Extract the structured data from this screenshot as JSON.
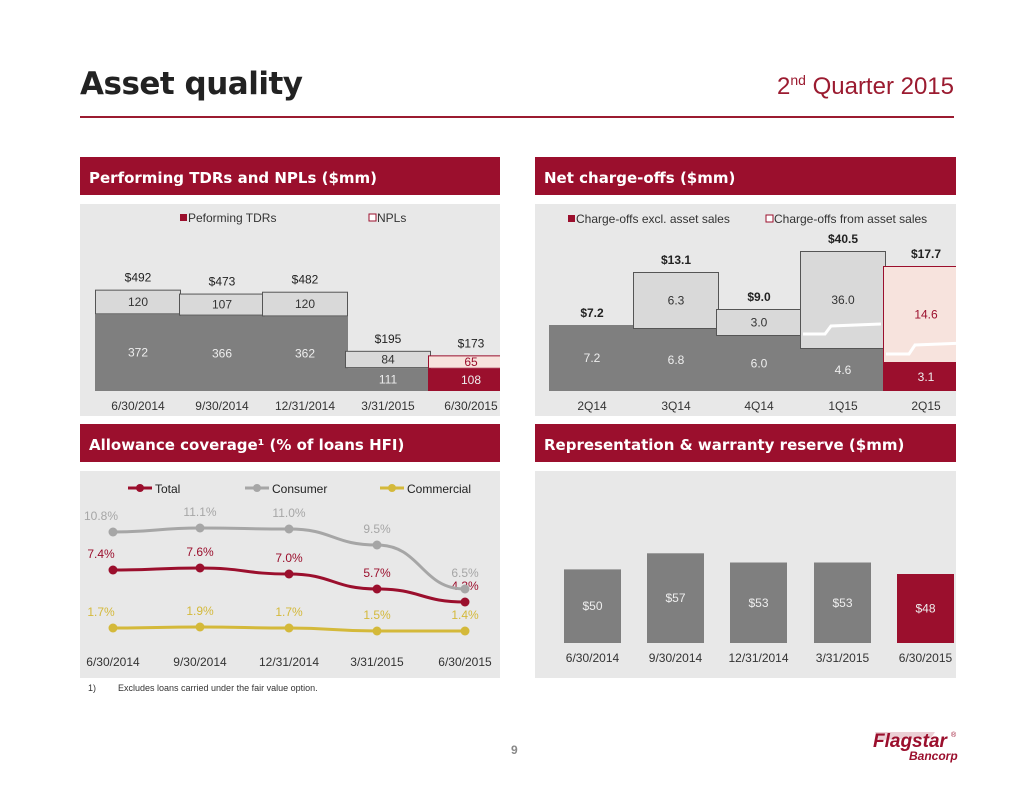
{
  "header": {
    "title": "Asset quality",
    "quarter_main": "2",
    "quarter_sup": "nd",
    "quarter_rest": " Quarter 2015"
  },
  "panels": {
    "tdr": "Performing TDRs and NPLs ($mm)",
    "nco": "Net charge-offs ($mm)",
    "allowance": "Allowance coverage¹ (% of loans HFI)",
    "reserve": "Representation & warranty reserve ($mm)"
  },
  "footnote": {
    "marker": "1)",
    "text": "Excludes loans carried under the fair value option."
  },
  "page_number": "9",
  "logo": {
    "name": "Flagstar",
    "sub": "Bancorp",
    "mark": "®"
  },
  "colors": {
    "brand": "#9b0f2d",
    "dark_grey": "#7f7f7f",
    "light_grey": "#d9d9d9",
    "light_pink": "#f7e3dd",
    "consumer_grey": "#a6a6a6",
    "commercial_gold": "#d4b93a"
  },
  "chart_data": [
    {
      "id": "tdr",
      "type": "bar",
      "stacked": true,
      "categories": [
        "6/30/2014",
        "9/30/2014",
        "12/31/2014",
        "3/31/2015",
        "6/30/2015"
      ],
      "series": [
        {
          "name": "Peforming TDRs",
          "values": [
            372,
            366,
            362,
            111,
            108
          ]
        },
        {
          "name": "NPLs",
          "values": [
            120,
            107,
            120,
            84,
            65
          ]
        }
      ],
      "totals": [
        "$492",
        "$473",
        "$482",
        "$195",
        "$173"
      ],
      "legend": "top",
      "grid": false
    },
    {
      "id": "nco",
      "type": "bar",
      "stacked": true,
      "categories": [
        "2Q14",
        "3Q14",
        "4Q14",
        "1Q15",
        "2Q15"
      ],
      "series": [
        {
          "name": "Charge-offs excl. asset sales",
          "values": [
            7.2,
            6.8,
            6.0,
            4.6,
            3.1
          ]
        },
        {
          "name": "Charge-offs from asset sales",
          "values": [
            0,
            6.3,
            3.0,
            36.0,
            14.6
          ]
        }
      ],
      "value_labels": [
        [
          "7.2",
          "6.8",
          "6.0",
          "4.6",
          "3.1"
        ],
        [
          "",
          "6.3",
          "3.0",
          "36.0",
          "14.6"
        ]
      ],
      "totals": [
        "$7.2",
        "$13.1",
        "$9.0",
        "$40.5",
        "$17.7"
      ],
      "axis_break": true,
      "legend": "top",
      "grid": false
    },
    {
      "id": "allowance",
      "type": "line",
      "categories": [
        "6/30/2014",
        "9/30/2014",
        "12/31/2014",
        "3/31/2015",
        "6/30/2015"
      ],
      "series": [
        {
          "name": "Total",
          "values": [
            7.4,
            7.6,
            7.0,
            5.7,
            4.3
          ],
          "labels": [
            "7.4%",
            "7.6%",
            "7.0%",
            "5.7%",
            "4.3%"
          ]
        },
        {
          "name": "Consumer",
          "values": [
            10.8,
            11.1,
            11.0,
            9.5,
            6.5
          ],
          "labels": [
            "10.8%",
            "11.1%",
            "11.0%",
            "9.5%",
            "6.5%"
          ]
        },
        {
          "name": "Commercial",
          "values": [
            1.7,
            1.9,
            1.7,
            1.5,
            1.4
          ],
          "labels": [
            "1.7%",
            "1.9%",
            "1.7%",
            "1.5%",
            "1.4%"
          ]
        }
      ],
      "legend": "top",
      "grid": false
    },
    {
      "id": "reserve",
      "type": "bar",
      "categories": [
        "6/30/2014",
        "9/30/2014",
        "12/31/2014",
        "3/31/2015",
        "6/30/2015"
      ],
      "values": [
        50,
        57,
        53,
        53,
        48
      ],
      "labels": [
        "$50",
        "$57",
        "$53",
        "$53",
        "$48"
      ],
      "grid": false
    }
  ]
}
